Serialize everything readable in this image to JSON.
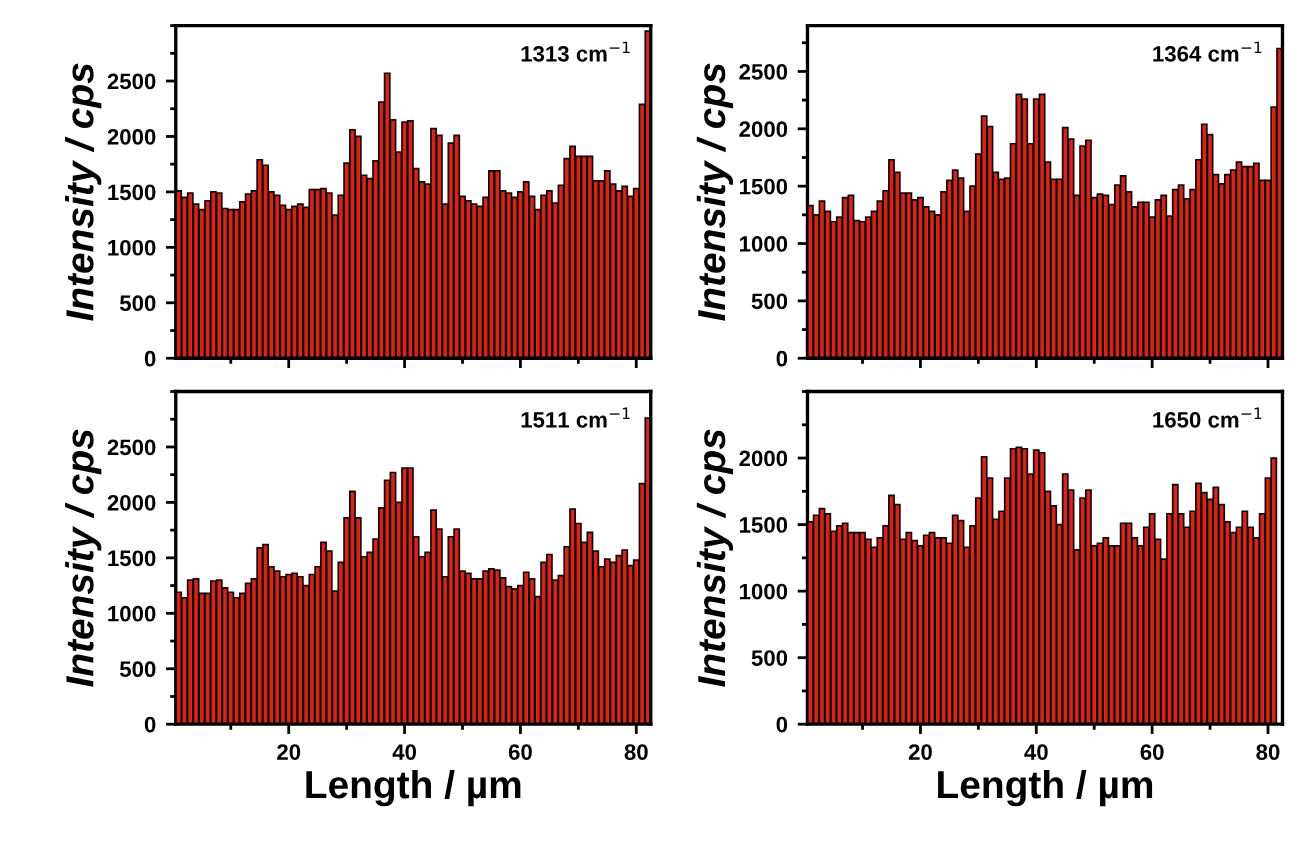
{
  "chart_data": [
    {
      "type": "bar",
      "ylabel": "Intensity / cps",
      "annotations": [
        "1313 cm$^{−1}$"
      ],
      "tick_labels": "y",
      "color": "#d0261c",
      "xlim": [
        0.5,
        82.5
      ],
      "xticks": [
        20,
        40,
        60,
        80
      ],
      "ylim": [
        0,
        3000
      ],
      "yticks": [
        0,
        500,
        1000,
        1500,
        2000,
        2500
      ],
      "x": [
        1,
        2,
        3,
        4,
        5,
        6,
        7,
        8,
        9,
        10,
        11,
        12,
        13,
        14,
        15,
        16,
        17,
        18,
        19,
        20,
        21,
        22,
        23,
        24,
        25,
        26,
        27,
        28,
        29,
        30,
        31,
        32,
        33,
        34,
        35,
        36,
        37,
        38,
        39,
        40,
        41,
        42,
        43,
        44,
        45,
        46,
        47,
        48,
        49,
        50,
        51,
        52,
        53,
        54,
        55,
        56,
        57,
        58,
        59,
        60,
        61,
        62,
        63,
        64,
        65,
        66,
        67,
        68,
        69,
        70,
        71,
        72,
        73,
        74,
        75,
        76,
        77,
        78,
        79,
        80,
        81,
        82
      ],
      "values": [
        1510,
        1450,
        1490,
        1390,
        1340,
        1420,
        1500,
        1490,
        1350,
        1340,
        1340,
        1410,
        1480,
        1510,
        1790,
        1740,
        1500,
        1470,
        1380,
        1340,
        1370,
        1390,
        1360,
        1520,
        1520,
        1530,
        1490,
        1290,
        1470,
        1760,
        2060,
        2000,
        1650,
        1620,
        1780,
        2310,
        2570,
        2150,
        1860,
        2130,
        2140,
        1710,
        1590,
        1570,
        2070,
        2010,
        1390,
        1940,
        2010,
        1460,
        1420,
        1390,
        1370,
        1450,
        1690,
        1690,
        1510,
        1490,
        1450,
        1500,
        1590,
        1460,
        1340,
        1470,
        1510,
        1400,
        1560,
        1800,
        1910,
        1820,
        1820,
        1820,
        1600,
        1600,
        1690,
        1570,
        1510,
        1550,
        1460,
        1530,
        2290,
        2950
      ]
    },
    {
      "type": "bar",
      "ylabel": "Intensity / cps",
      "annotations": [
        "1364 cm$^{−1}$"
      ],
      "tick_labels": "y",
      "color": "#d0261c",
      "xlim": [
        0.5,
        82.5
      ],
      "xticks": [
        20,
        40,
        60,
        80
      ],
      "ylim": [
        0,
        2900
      ],
      "yticks": [
        0,
        500,
        1000,
        1500,
        2000,
        2500
      ],
      "x": [
        1,
        2,
        3,
        4,
        5,
        6,
        7,
        8,
        9,
        10,
        11,
        12,
        13,
        14,
        15,
        16,
        17,
        18,
        19,
        20,
        21,
        22,
        23,
        24,
        25,
        26,
        27,
        28,
        29,
        30,
        31,
        32,
        33,
        34,
        35,
        36,
        37,
        38,
        39,
        40,
        41,
        42,
        43,
        44,
        45,
        46,
        47,
        48,
        49,
        50,
        51,
        52,
        53,
        54,
        55,
        56,
        57,
        58,
        59,
        60,
        61,
        62,
        63,
        64,
        65,
        66,
        67,
        68,
        69,
        70,
        71,
        72,
        73,
        74,
        75,
        76,
        77,
        78,
        79,
        80,
        81,
        82
      ],
      "values": [
        1330,
        1250,
        1370,
        1280,
        1190,
        1230,
        1400,
        1420,
        1200,
        1190,
        1230,
        1280,
        1370,
        1460,
        1730,
        1620,
        1440,
        1440,
        1380,
        1400,
        1320,
        1280,
        1250,
        1450,
        1550,
        1640,
        1570,
        1280,
        1500,
        1780,
        2110,
        2020,
        1620,
        1560,
        1570,
        1870,
        2300,
        2260,
        1870,
        2260,
        2300,
        1710,
        1560,
        1560,
        2010,
        1910,
        1420,
        1850,
        1900,
        1400,
        1430,
        1420,
        1340,
        1510,
        1590,
        1450,
        1320,
        1360,
        1360,
        1230,
        1380,
        1420,
        1240,
        1470,
        1510,
        1390,
        1470,
        1730,
        2040,
        1950,
        1600,
        1520,
        1600,
        1640,
        1710,
        1670,
        1670,
        1700,
        1550,
        1550,
        2190,
        2700
      ]
    },
    {
      "type": "bar",
      "ylabel": "Intensity / cps",
      "xlabel": "Length / µm",
      "annotations": [
        "1511 cm$^{−1}$"
      ],
      "color": "#d0261c",
      "xlim": [
        0.5,
        82.5
      ],
      "xticks": [
        20,
        40,
        60,
        80
      ],
      "ylim": [
        0,
        3000
      ],
      "yticks": [
        0,
        500,
        1000,
        1500,
        2000,
        2500
      ],
      "x": [
        1,
        2,
        3,
        4,
        5,
        6,
        7,
        8,
        9,
        10,
        11,
        12,
        13,
        14,
        15,
        16,
        17,
        18,
        19,
        20,
        21,
        22,
        23,
        24,
        25,
        26,
        27,
        28,
        29,
        30,
        31,
        32,
        33,
        34,
        35,
        36,
        37,
        38,
        39,
        40,
        41,
        42,
        43,
        44,
        45,
        46,
        47,
        48,
        49,
        50,
        51,
        52,
        53,
        54,
        55,
        56,
        57,
        58,
        59,
        60,
        61,
        62,
        63,
        64,
        65,
        66,
        67,
        68,
        69,
        70,
        71,
        72,
        73,
        74,
        75,
        76,
        77,
        78,
        79,
        80,
        81,
        82
      ],
      "values": [
        1190,
        1140,
        1300,
        1310,
        1180,
        1180,
        1290,
        1300,
        1230,
        1190,
        1140,
        1180,
        1270,
        1310,
        1590,
        1620,
        1420,
        1380,
        1330,
        1350,
        1360,
        1330,
        1250,
        1350,
        1420,
        1640,
        1560,
        1200,
        1460,
        1860,
        2100,
        1860,
        1510,
        1550,
        1670,
        1950,
        2200,
        2270,
        2000,
        2310,
        2310,
        1690,
        1510,
        1550,
        1930,
        1760,
        1330,
        1690,
        1760,
        1380,
        1360,
        1310,
        1310,
        1380,
        1400,
        1390,
        1320,
        1240,
        1220,
        1250,
        1370,
        1310,
        1150,
        1460,
        1530,
        1300,
        1340,
        1600,
        1940,
        1810,
        1640,
        1730,
        1560,
        1420,
        1490,
        1460,
        1520,
        1570,
        1430,
        1480,
        2170,
        2760
      ]
    },
    {
      "type": "bar",
      "ylabel": "Intensity / cps",
      "xlabel": "Length / µm",
      "annotations": [
        "1650 cm$^{−1}$"
      ],
      "color": "#d0261c",
      "xlim": [
        0.5,
        82.5
      ],
      "xticks": [
        20,
        40,
        60,
        80
      ],
      "ylim": [
        0,
        2500
      ],
      "yticks": [
        0,
        500,
        1000,
        1500,
        2000
      ],
      "x": [
        1,
        2,
        3,
        4,
        5,
        6,
        7,
        8,
        9,
        10,
        11,
        12,
        13,
        14,
        15,
        16,
        17,
        18,
        19,
        20,
        21,
        22,
        23,
        24,
        25,
        26,
        27,
        28,
        29,
        30,
        31,
        32,
        33,
        34,
        35,
        36,
        37,
        38,
        39,
        40,
        41,
        42,
        43,
        44,
        45,
        46,
        47,
        48,
        49,
        50,
        51,
        52,
        53,
        54,
        55,
        56,
        57,
        58,
        59,
        60,
        61,
        62,
        63,
        64,
        65,
        66,
        67,
        68,
        69,
        70,
        71,
        72,
        73,
        74,
        75,
        76,
        77,
        78,
        79,
        80,
        81
      ],
      "values": [
        1520,
        1570,
        1620,
        1580,
        1450,
        1490,
        1510,
        1440,
        1440,
        1440,
        1390,
        1330,
        1400,
        1490,
        1720,
        1650,
        1390,
        1440,
        1380,
        1340,
        1420,
        1440,
        1400,
        1400,
        1360,
        1570,
        1530,
        1330,
        1490,
        1700,
        2010,
        1850,
        1540,
        1600,
        1850,
        2070,
        2080,
        2070,
        1880,
        2060,
        2040,
        1750,
        1640,
        1500,
        1880,
        1760,
        1310,
        1700,
        1760,
        1340,
        1360,
        1400,
        1340,
        1340,
        1510,
        1510,
        1400,
        1340,
        1480,
        1580,
        1390,
        1240,
        1580,
        1800,
        1580,
        1480,
        1600,
        1810,
        1740,
        1690,
        1780,
        1650,
        1520,
        1440,
        1480,
        1600,
        1480,
        1400,
        1580,
        1850,
        2000
      ]
    }
  ]
}
